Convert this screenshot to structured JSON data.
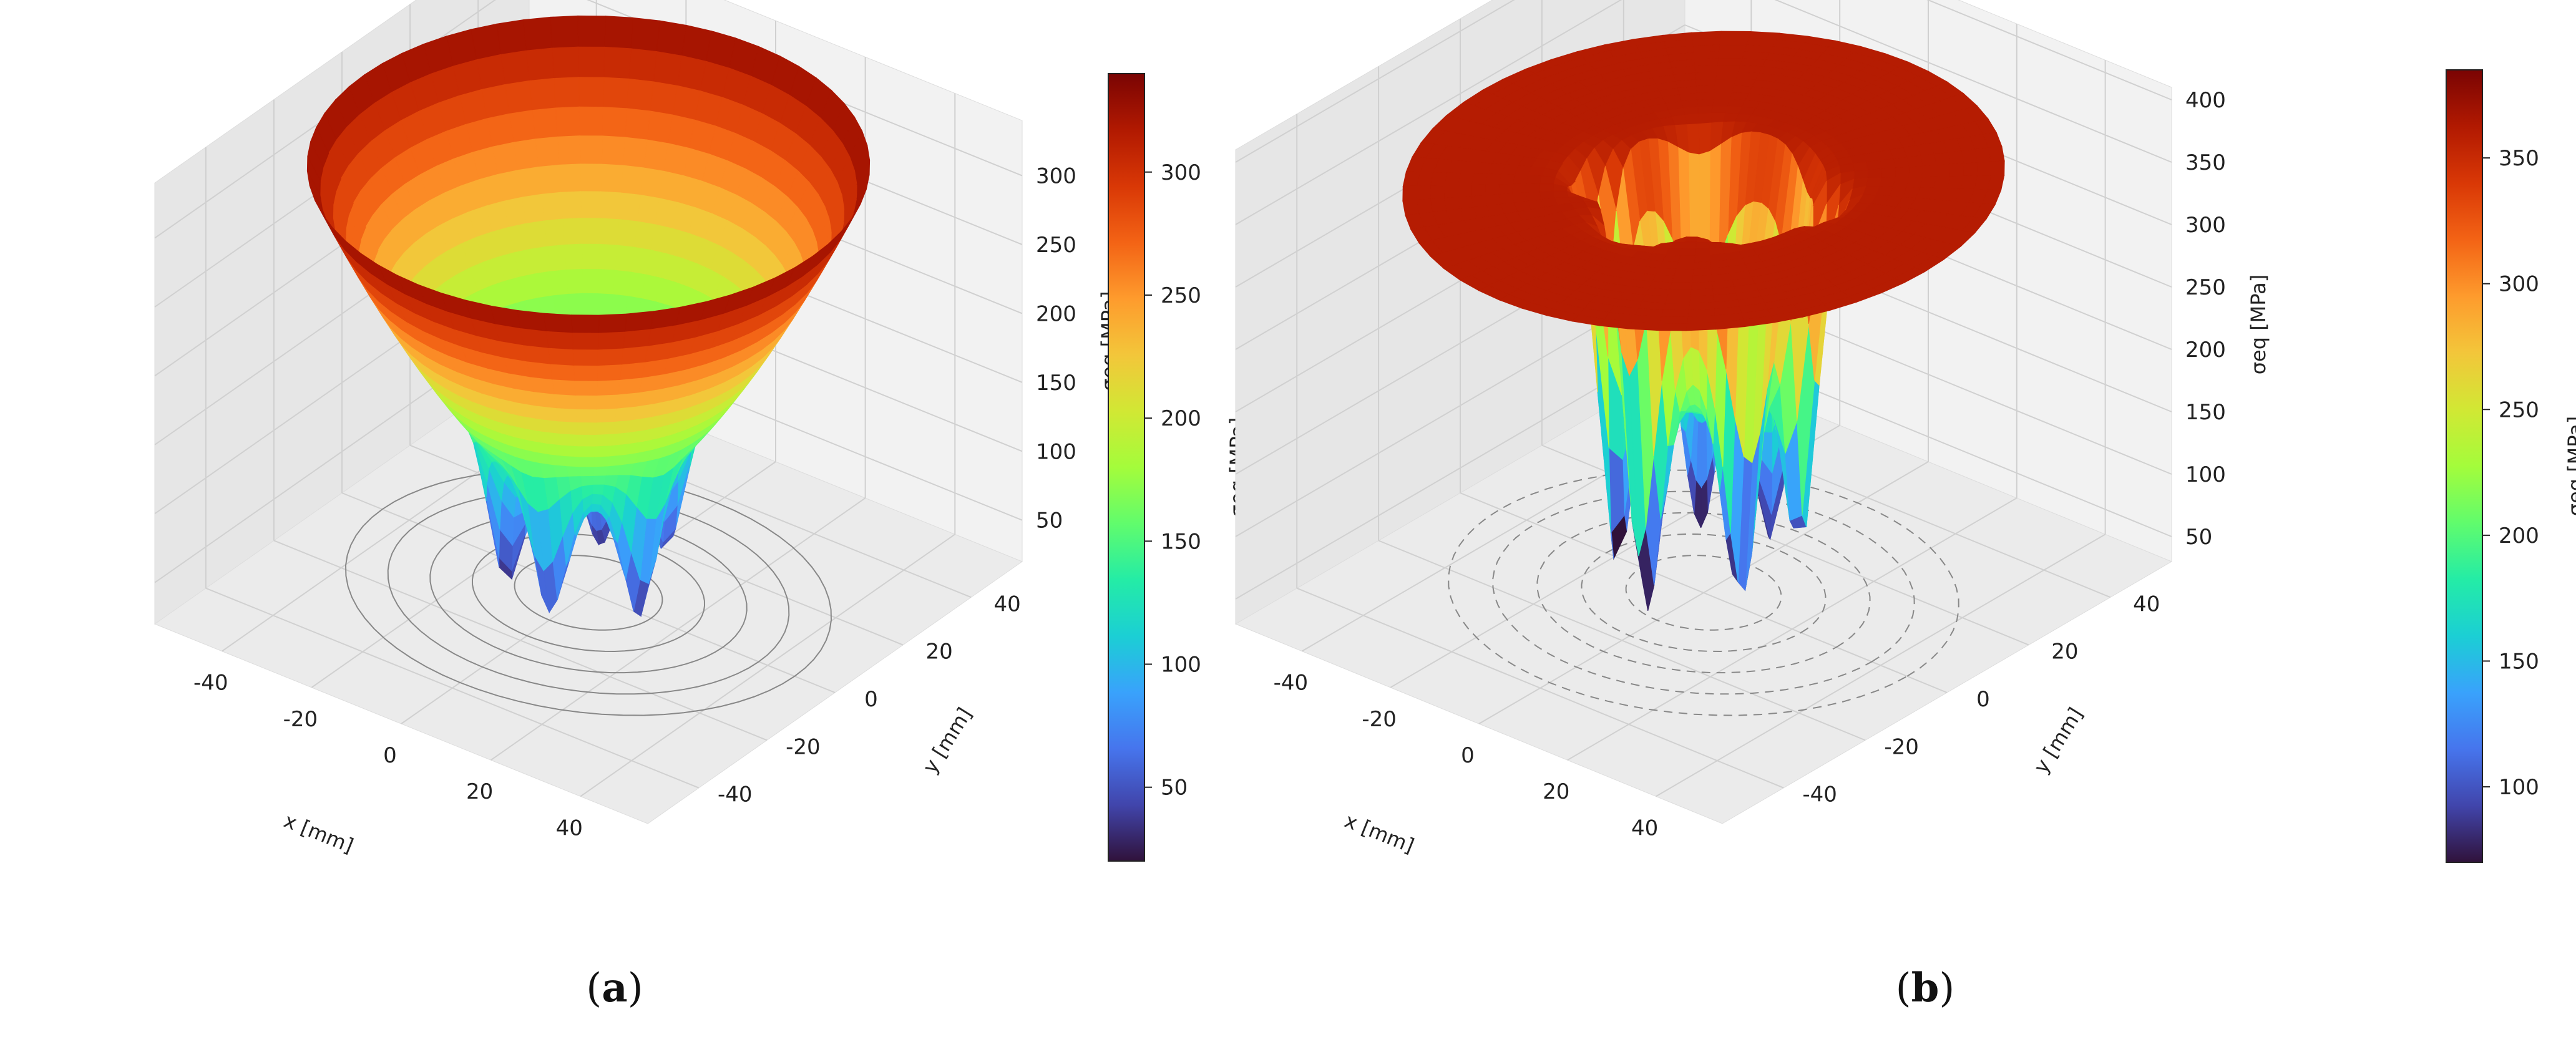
{
  "colors": {
    "colormap": [
      "#30123b",
      "#4145ab",
      "#4675ed",
      "#39a2fc",
      "#1bcfd4",
      "#24eca6",
      "#61fc6c",
      "#a4fc3b",
      "#d1e834",
      "#f3c63a",
      "#fe9b2d",
      "#f36315",
      "#d93806",
      "#b11901",
      "#7a0403"
    ],
    "pane_back": "#f2f2f2",
    "pane_side": "#e6e6e6",
    "pane_floor": "#ebebeb",
    "grid": "#d0d0d0",
    "contour": "#888888"
  },
  "chart_data": [
    {
      "panel": "a",
      "type": "surface3d",
      "title": "",
      "xlabel": "x [mm]",
      "ylabel": "y [mm]",
      "zlabel": "σeq [MPa]",
      "x_ticks": [
        -40,
        -20,
        0,
        20,
        40
      ],
      "y_ticks": [
        -40,
        -20,
        0,
        20,
        40
      ],
      "z_ticks": [
        50,
        100,
        150,
        200,
        250,
        300
      ],
      "xlim": [
        -55,
        55
      ],
      "ylim": [
        -55,
        55
      ],
      "zlim": [
        20,
        340
      ],
      "colorbar": {
        "label": "σeq [MPa]",
        "ticks": [
          50,
          100,
          150,
          200,
          250,
          300
        ],
        "range": [
          20,
          340
        ]
      },
      "surface": {
        "rim_radius_mm": 50,
        "rim_value": 330,
        "min_value": 25,
        "shape": "funnel",
        "dips": [
          {
            "x": -12,
            "y": -8,
            "min": 25
          },
          {
            "x": -5,
            "y": 10,
            "min": 30
          },
          {
            "x": 8,
            "y": 12,
            "min": 40
          },
          {
            "x": 15,
            "y": -5,
            "min": 30
          },
          {
            "x": 3,
            "y": -15,
            "min": 35
          },
          {
            "x": -16,
            "y": 4,
            "min": 50
          }
        ]
      },
      "panel_label": {
        "pre": "(",
        "letter": "a",
        "post": ")"
      }
    },
    {
      "panel": "b",
      "type": "surface3d",
      "title": "",
      "xlabel": "x [mm]",
      "ylabel": "y [mm]",
      "zlabel": "σeq [MPa]",
      "x_ticks": [
        -40,
        -20,
        0,
        20,
        40
      ],
      "y_ticks": [
        -40,
        -20,
        0,
        20,
        40
      ],
      "z_ticks": [
        50,
        100,
        150,
        200,
        250,
        300,
        350,
        400
      ],
      "xlim": [
        -55,
        55
      ],
      "ylim": [
        -55,
        55
      ],
      "zlim": [
        30,
        410
      ],
      "colorbar": {
        "label": "σeq [MPa]",
        "ticks": [
          100,
          150,
          200,
          250,
          300,
          350
        ],
        "range": [
          70,
          385
        ]
      },
      "surface": {
        "rim_radius_mm": 50,
        "rim_value": 360,
        "plateau_value": 360,
        "min_value": 40,
        "shape": "plateau_with_core",
        "core_radius_mm": 18,
        "dips": [
          {
            "x": -14,
            "y": -6,
            "min": 40
          },
          {
            "x": -8,
            "y": 8,
            "min": 55
          },
          {
            "x": 6,
            "y": 10,
            "min": 60
          },
          {
            "x": 12,
            "y": -4,
            "min": 45
          },
          {
            "x": 0,
            "y": -14,
            "min": 40
          },
          {
            "x": 16,
            "y": 6,
            "min": 70
          }
        ]
      },
      "panel_label": {
        "pre": "(",
        "letter": "b",
        "post": ")"
      }
    }
  ]
}
